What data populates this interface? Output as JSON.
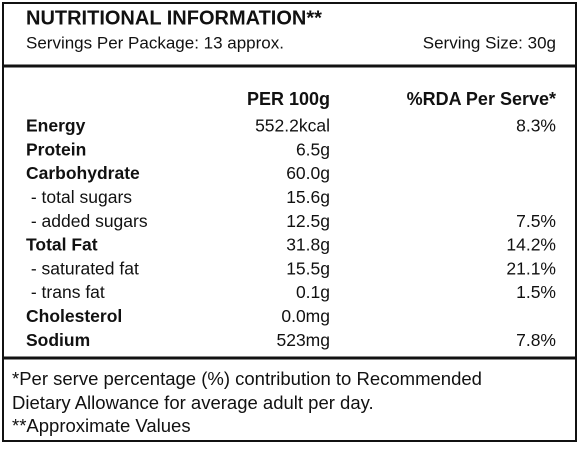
{
  "title": "NUTRITIONAL INFORMATION**",
  "servings_per_package": "Servings Per Package: 13 approx.",
  "serving_size": "Serving Size: 30g",
  "table": {
    "headers": [
      "PER 100g",
      "%RDA Per Serve*"
    ],
    "rows": [
      {
        "name": "Energy",
        "per_100g": "552.2kcal",
        "rda": "8.3%",
        "bold": true
      },
      {
        "name": "Protein",
        "per_100g": "6.5g",
        "rda": null,
        "bold": true
      },
      {
        "name": "Carbohydrate",
        "per_100g": "60.0g",
        "rda": null,
        "bold": true
      },
      {
        "name": " - total sugars",
        "per_100g": "15.6g",
        "rda": null,
        "bold": false
      },
      {
        "name": " - added sugars",
        "per_100g": "12.5g",
        "rda": "7.5%",
        "bold": false
      },
      {
        "name": "Total Fat",
        "per_100g": "31.8g",
        "rda": "14.2%",
        "bold": true
      },
      {
        "name": " - saturated fat",
        "per_100g": "15.5g",
        "rda": "21.1%",
        "bold": false
      },
      {
        "name": " - trans fat",
        "per_100g": "0.1g",
        "rda": "1.5%",
        "bold": false
      },
      {
        "name": "Cholesterol",
        "per_100g": "0.0mg",
        "rda": null,
        "bold": true
      },
      {
        "name": "Sodium",
        "per_100g": "523mg",
        "rda": "7.8%",
        "bold": true
      }
    ]
  },
  "footnotes": [
    "*Per serve percentage (%) contribution to Recommended",
    "Dietary Allowance for average adult per day.",
    "**Approximate Values"
  ]
}
